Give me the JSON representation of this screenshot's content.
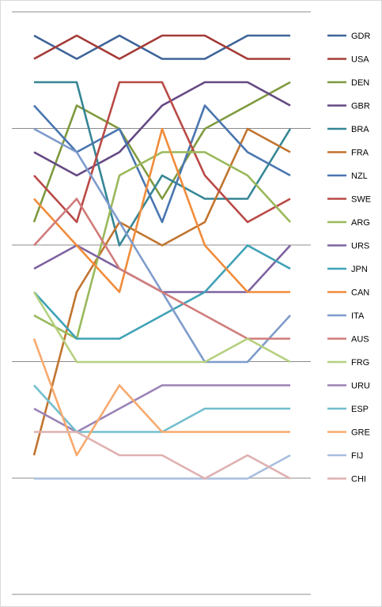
{
  "chart_data": {
    "type": "line",
    "title": "",
    "xlabel": "",
    "ylabel": "",
    "x": [
      1,
      2,
      3,
      4,
      5,
      6,
      7
    ],
    "ylim": [
      1,
      20
    ],
    "y_inverted": true,
    "grid": "horizontal",
    "axis_labels_shown": false,
    "legend_position": "right",
    "series": [
      {
        "name": "GDR",
        "color": "#3E6498",
        "values": [
          1,
          2,
          1,
          2,
          2,
          1,
          1
        ]
      },
      {
        "name": "USA",
        "color": "#A33B37",
        "values": [
          2,
          1,
          2,
          1,
          1,
          2,
          2
        ]
      },
      {
        "name": "DEN",
        "color": "#7F9A3F",
        "values": [
          9,
          4,
          5,
          8,
          5,
          4,
          3
        ]
      },
      {
        "name": "GBR",
        "color": "#654983",
        "values": [
          6,
          7,
          6,
          4,
          3,
          3,
          4
        ]
      },
      {
        "name": "BRA",
        "color": "#358695",
        "values": [
          3,
          3,
          10,
          7,
          8,
          8,
          5
        ]
      },
      {
        "name": "FRA",
        "color": "#C1742F",
        "values": [
          19,
          12,
          9,
          10,
          9,
          5,
          6
        ]
      },
      {
        "name": "NZL",
        "color": "#4976B0",
        "values": [
          4,
          6,
          5,
          9,
          4,
          6,
          7
        ]
      },
      {
        "name": "SWE",
        "color": "#B94A47",
        "values": [
          7,
          9,
          3,
          3,
          7,
          9,
          8
        ]
      },
      {
        "name": "ARG",
        "color": "#99B95A",
        "values": [
          13,
          14,
          7,
          6,
          6,
          7,
          9
        ]
      },
      {
        "name": "URS",
        "color": "#7E63A0",
        "values": [
          11,
          10,
          11,
          12,
          12,
          12,
          10
        ]
      },
      {
        "name": "JPN",
        "color": "#3FA2B6",
        "values": [
          12,
          14,
          14,
          13,
          12,
          10,
          11
        ]
      },
      {
        "name": "CAN",
        "color": "#F18C3B",
        "values": [
          8,
          10,
          12,
          5,
          10,
          12,
          12
        ]
      },
      {
        "name": "ITA",
        "color": "#7E9BCC",
        "values": [
          5,
          6,
          9,
          12,
          15,
          15,
          13
        ]
      },
      {
        "name": "AUS",
        "color": "#D07C7B",
        "values": [
          10,
          8,
          11,
          12,
          13,
          14,
          14
        ]
      },
      {
        "name": "FRG",
        "color": "#B5D07E",
        "values": [
          12,
          15,
          15,
          15,
          15,
          14,
          15
        ]
      },
      {
        "name": "URU",
        "color": "#9B83B5",
        "values": [
          17,
          18,
          17,
          16,
          16,
          16,
          16
        ]
      },
      {
        "name": "ESP",
        "color": "#72BECE",
        "values": [
          16,
          18,
          18,
          18,
          17,
          17,
          17
        ]
      },
      {
        "name": "GRE",
        "color": "#F7AA6E",
        "values": [
          14,
          19,
          16,
          18,
          18,
          18,
          18
        ]
      },
      {
        "name": "FIJ",
        "color": "#A8BEDE",
        "values": [
          20,
          20,
          20,
          20,
          20,
          20,
          19
        ]
      },
      {
        "name": "CHI",
        "color": "#DFB1B0",
        "values": [
          18,
          18,
          19,
          19,
          20,
          19,
          20
        ]
      }
    ]
  }
}
